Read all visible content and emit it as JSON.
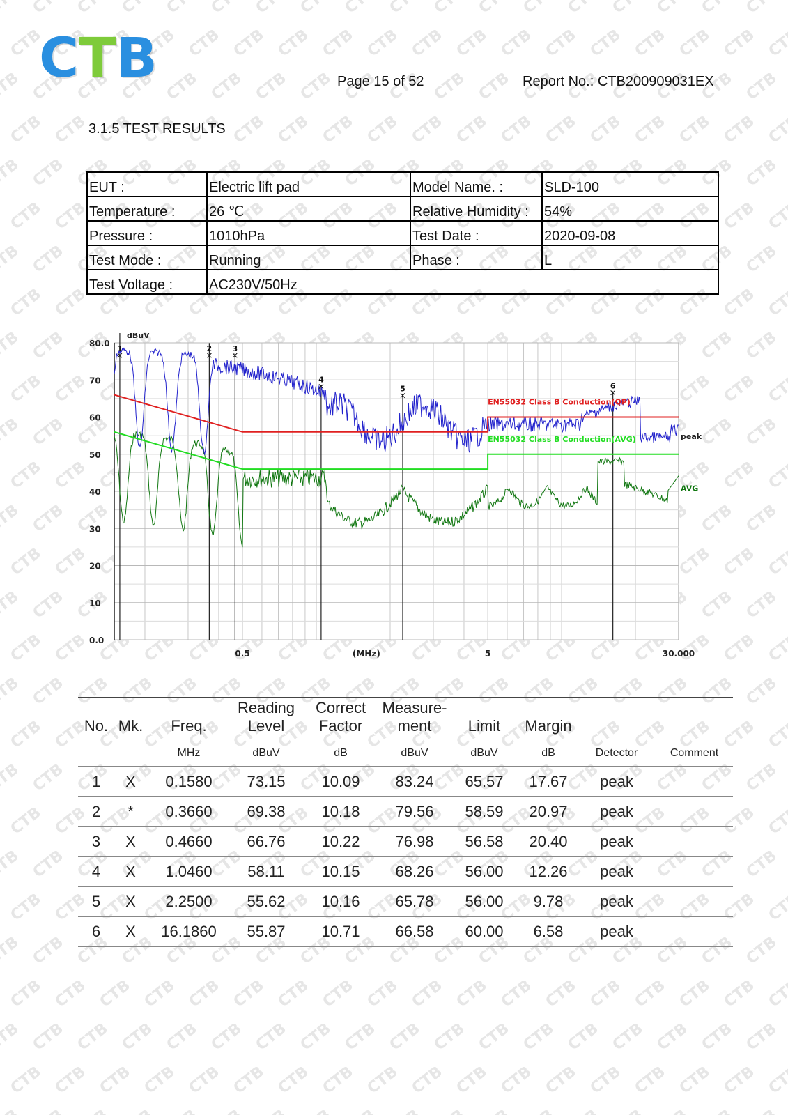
{
  "header": {
    "logo": [
      "C",
      "T",
      "B"
    ],
    "logo_colors": [
      "#2a8fe0",
      "#7ecb3a",
      "#2a8fe0"
    ],
    "page": "Page 15 of 52",
    "report_no": "Report No.:  CTB200909031EX"
  },
  "watermark_text": "CTB",
  "section_title": "3.1.5  TEST RESULTS",
  "info": {
    "eut_label": "EUT :",
    "eut": "Electric lift pad",
    "model_label": "Model Name.  :",
    "model": "SLD-100",
    "temp_label": "Temperature :",
    "temp": "26 ℃",
    "hum_label": "Relative Humidity :",
    "hum": "54%",
    "press_label": "Pressure :",
    "press": "1010hPa",
    "date_label": "Test Date :",
    "date": "2020-09-08",
    "mode_label": "Test Mode :",
    "mode": "Running",
    "phase_label": "Phase :",
    "phase": "L",
    "volt_label": "Test Voltage   :",
    "volt": "AC230V/50Hz"
  },
  "chart_data": {
    "type": "line",
    "ylabel": "dBuV",
    "xlabel": "(MHz)",
    "x_scale": "log",
    "xlim": [
      0.15,
      30
    ],
    "ylim": [
      0,
      80
    ],
    "y_ticks": [
      "80.0",
      "70",
      "60",
      "50",
      "40",
      "30",
      "20",
      "10",
      "0.0"
    ],
    "x_ticks": [
      "0.5",
      "(MHz)",
      "5",
      "30.000"
    ],
    "limit_lines": [
      {
        "name": "EN55032  Class B Conduction(QP)",
        "color": "#e02020",
        "points": [
          [
            0.15,
            66
          ],
          [
            0.5,
            56
          ],
          [
            5,
            56
          ],
          [
            5,
            60
          ],
          [
            30,
            60
          ]
        ]
      },
      {
        "name": "EN55032 Class B Conduction(AVG)",
        "color": "#22dd22",
        "points": [
          [
            0.15,
            56
          ],
          [
            0.5,
            46
          ],
          [
            5,
            46
          ],
          [
            5,
            50
          ],
          [
            30,
            50
          ]
        ]
      }
    ],
    "series": [
      {
        "name": "peak",
        "color": "#2222cc"
      },
      {
        "name": "AVG",
        "color": "#117711"
      }
    ],
    "markers": [
      {
        "label": "1",
        "freq": 0.158,
        "level": 83.24
      },
      {
        "label": "2",
        "freq": 0.366,
        "level": 79.56
      },
      {
        "label": "3",
        "freq": 0.466,
        "level": 76.98
      },
      {
        "label": "4",
        "freq": 1.046,
        "level": 68.26
      },
      {
        "label": "5",
        "freq": 2.25,
        "level": 65.78
      },
      {
        "label": "6",
        "freq": 16.186,
        "level": 66.58
      }
    ]
  },
  "results": {
    "head1": [
      "No.",
      "Mk.",
      "Freq.",
      "Reading Level",
      "Correct Factor",
      "Measure- ment",
      "Limit",
      "Margin",
      "",
      ""
    ],
    "head2": [
      "",
      "",
      "MHz",
      "dBuV",
      "dB",
      "dBuV",
      "dBuV",
      "dB",
      "Detector",
      "Comment"
    ],
    "rows": [
      [
        "1",
        "X",
        "0.1580",
        "73.15",
        "10.09",
        "83.24",
        "65.57",
        "17.67",
        "peak",
        ""
      ],
      [
        "2",
        "*",
        "0.3660",
        "69.38",
        "10.18",
        "79.56",
        "58.59",
        "20.97",
        "peak",
        ""
      ],
      [
        "3",
        "X",
        "0.4660",
        "66.76",
        "10.22",
        "76.98",
        "56.58",
        "20.40",
        "peak",
        ""
      ],
      [
        "4",
        "X",
        "1.0460",
        "58.11",
        "10.15",
        "68.26",
        "56.00",
        "12.26",
        "peak",
        ""
      ],
      [
        "5",
        "X",
        "2.2500",
        "55.62",
        "10.16",
        "65.78",
        "56.00",
        "9.78",
        "peak",
        ""
      ],
      [
        "6",
        "X",
        "16.1860",
        "55.87",
        "10.71",
        "66.58",
        "60.00",
        "6.58",
        "peak",
        ""
      ]
    ]
  }
}
